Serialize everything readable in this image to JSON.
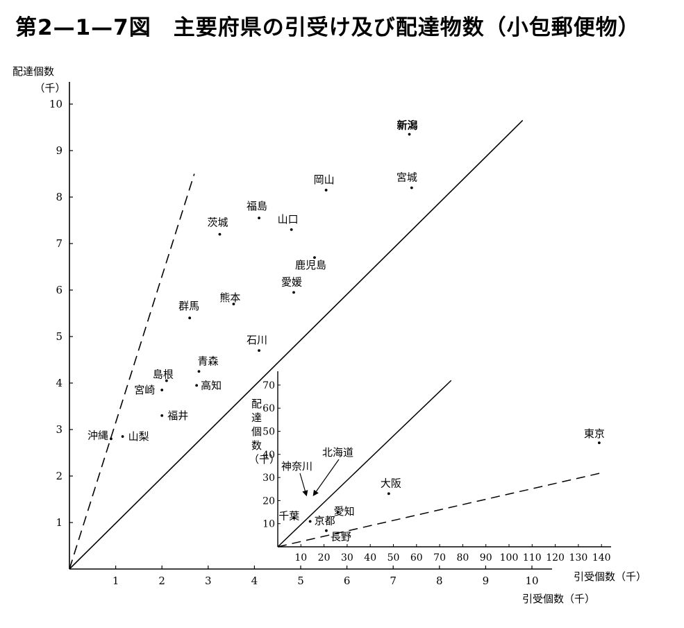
{
  "title": "第2—1—7図　主要府県の引受け及び配達物数（小包郵便物）",
  "chart_data": [
    {
      "type": "scatter",
      "name": "main",
      "xlabel": "引受個数（千）",
      "ylabel_line1": "配達個数",
      "ylabel_line2": "（千）",
      "xlim": [
        0,
        10.5
      ],
      "ylim": [
        0,
        10.5
      ],
      "x_ticks": [
        1,
        2,
        3,
        4,
        5,
        6,
        7,
        8,
        9,
        10
      ],
      "y_ticks": [
        1,
        2,
        3,
        4,
        5,
        6,
        7,
        8,
        9,
        10
      ],
      "reference_lines": [
        {
          "style": "solid",
          "from": [
            0,
            0
          ],
          "to": [
            9.8,
            9.65
          ]
        },
        {
          "style": "dashed",
          "from": [
            0,
            0
          ],
          "to": [
            2.7,
            8.5
          ]
        }
      ],
      "points": [
        {
          "label": "新潟",
          "x": 7.35,
          "y": 9.35
        },
        {
          "label": "岡山",
          "x": 5.55,
          "y": 8.15
        },
        {
          "label": "宮城",
          "x": 7.4,
          "y": 8.2
        },
        {
          "label": "福島",
          "x": 4.1,
          "y": 7.55
        },
        {
          "label": "山口",
          "x": 4.8,
          "y": 7.3
        },
        {
          "label": "茨城",
          "x": 3.25,
          "y": 7.2
        },
        {
          "label": "鹿児島",
          "x": 5.3,
          "y": 6.7
        },
        {
          "label": "愛媛",
          "x": 4.85,
          "y": 5.95
        },
        {
          "label": "熊本",
          "x": 3.55,
          "y": 5.7
        },
        {
          "label": "群馬",
          "x": 2.6,
          "y": 5.4
        },
        {
          "label": "石川",
          "x": 4.1,
          "y": 4.7
        },
        {
          "label": "青森",
          "x": 2.8,
          "y": 4.25
        },
        {
          "label": "島根",
          "x": 2.1,
          "y": 4.05
        },
        {
          "label": "高知",
          "x": 2.75,
          "y": 3.95
        },
        {
          "label": "宮崎",
          "x": 2.0,
          "y": 3.85
        },
        {
          "label": "福井",
          "x": 2.0,
          "y": 3.3
        },
        {
          "label": "沖縄",
          "x": 0.9,
          "y": 2.8
        },
        {
          "label": "山梨",
          "x": 1.15,
          "y": 2.85
        }
      ]
    },
    {
      "type": "scatter",
      "name": "inset",
      "xlabel": "引受個数（千）",
      "ylabel": [
        "配",
        "達",
        "個",
        "数",
        "（千）"
      ],
      "xlim": [
        0,
        140
      ],
      "ylim": [
        0,
        75
      ],
      "x_ticks": [
        10,
        20,
        30,
        40,
        50,
        60,
        70,
        80,
        90,
        100,
        110,
        120,
        130,
        140
      ],
      "y_ticks": [
        10,
        20,
        30,
        40,
        50,
        60,
        70
      ],
      "reference_lines": [
        {
          "style": "solid",
          "from": [
            0,
            0
          ],
          "to": [
            75,
            72
          ]
        },
        {
          "style": "dashed",
          "from": [
            0,
            0
          ],
          "to": [
            140,
            32
          ]
        }
      ],
      "points": [
        {
          "label": "東京",
          "x": 139,
          "y": 45
        },
        {
          "label": "大阪",
          "x": 48,
          "y": 23
        },
        {
          "label": "愛知",
          "x": 26,
          "y": 15
        },
        {
          "label": "千葉",
          "x": 7,
          "y": 12.5
        },
        {
          "label": "京都",
          "x": 14,
          "y": 11
        },
        {
          "label": "長野",
          "x": 21,
          "y": 7
        }
      ],
      "arrow_labels": [
        {
          "label": "神奈川",
          "x": 12,
          "y": 20
        },
        {
          "label": "北海道",
          "x": 15,
          "y": 20
        }
      ]
    }
  ]
}
